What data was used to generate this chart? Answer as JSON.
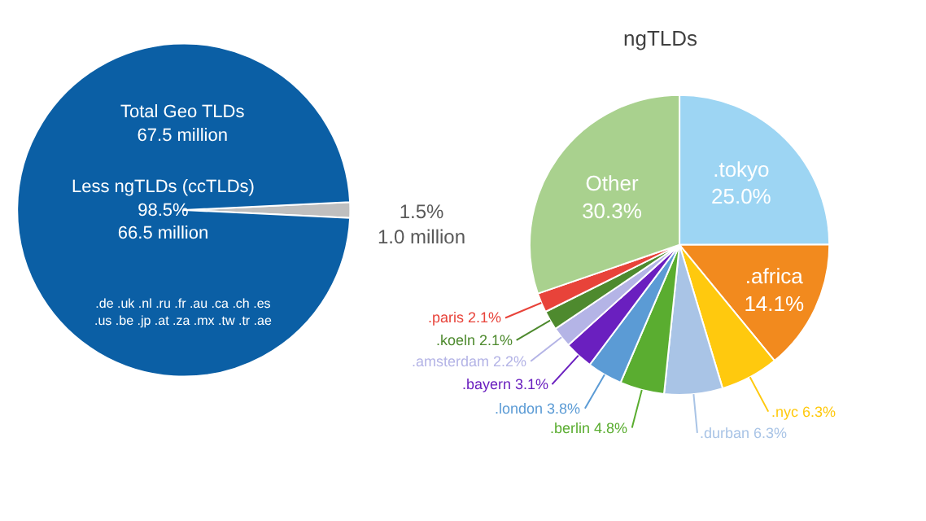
{
  "chart_data": [
    {
      "type": "pie",
      "title": "Total Geo TLDs\n67.5 million",
      "categories": [
        null,
        null
      ],
      "values": [
        98.5,
        1.5
      ],
      "colors": [
        "#0b5fa5",
        "#bfbfbf"
      ],
      "value_labels": [
        "Less ngTLDs (ccTLDs)\n98.5%\n66.5 million",
        "1.5%\n1.0 million"
      ],
      "annotations": [
        ".de .uk .nl .ru .fr .au .ca .ch .es\n.us .be .jp .at .za .mx .tw .tr .ae"
      ]
    },
    {
      "type": "pie",
      "title": "ngTLDs",
      "categories": [
        ".tokyo",
        ".africa",
        ".nyc",
        ".durban",
        ".berlin",
        ".london",
        ".bayern",
        ".amsterdam",
        ".koeln",
        ".paris",
        "Other"
      ],
      "values": [
        25.0,
        14.1,
        6.3,
        6.3,
        4.8,
        3.8,
        3.1,
        2.2,
        2.1,
        2.1,
        30.3
      ],
      "colors": [
        "#9dd5f3",
        "#f28a1e",
        "#ffc90e",
        "#a9c4e6",
        "#5aad30",
        "#5b9bd5",
        "#6a1fbf",
        "#b4b4e6",
        "#4e8a2e",
        "#e8433a",
        "#a9d18e"
      ],
      "value_labels": [
        "25.0%",
        "14.1%",
        "6.3%",
        "6.3%",
        "4.8%",
        "3.8%",
        "3.1%",
        "2.2%",
        "2.1%",
        "2.1%",
        "30.3%"
      ]
    }
  ]
}
